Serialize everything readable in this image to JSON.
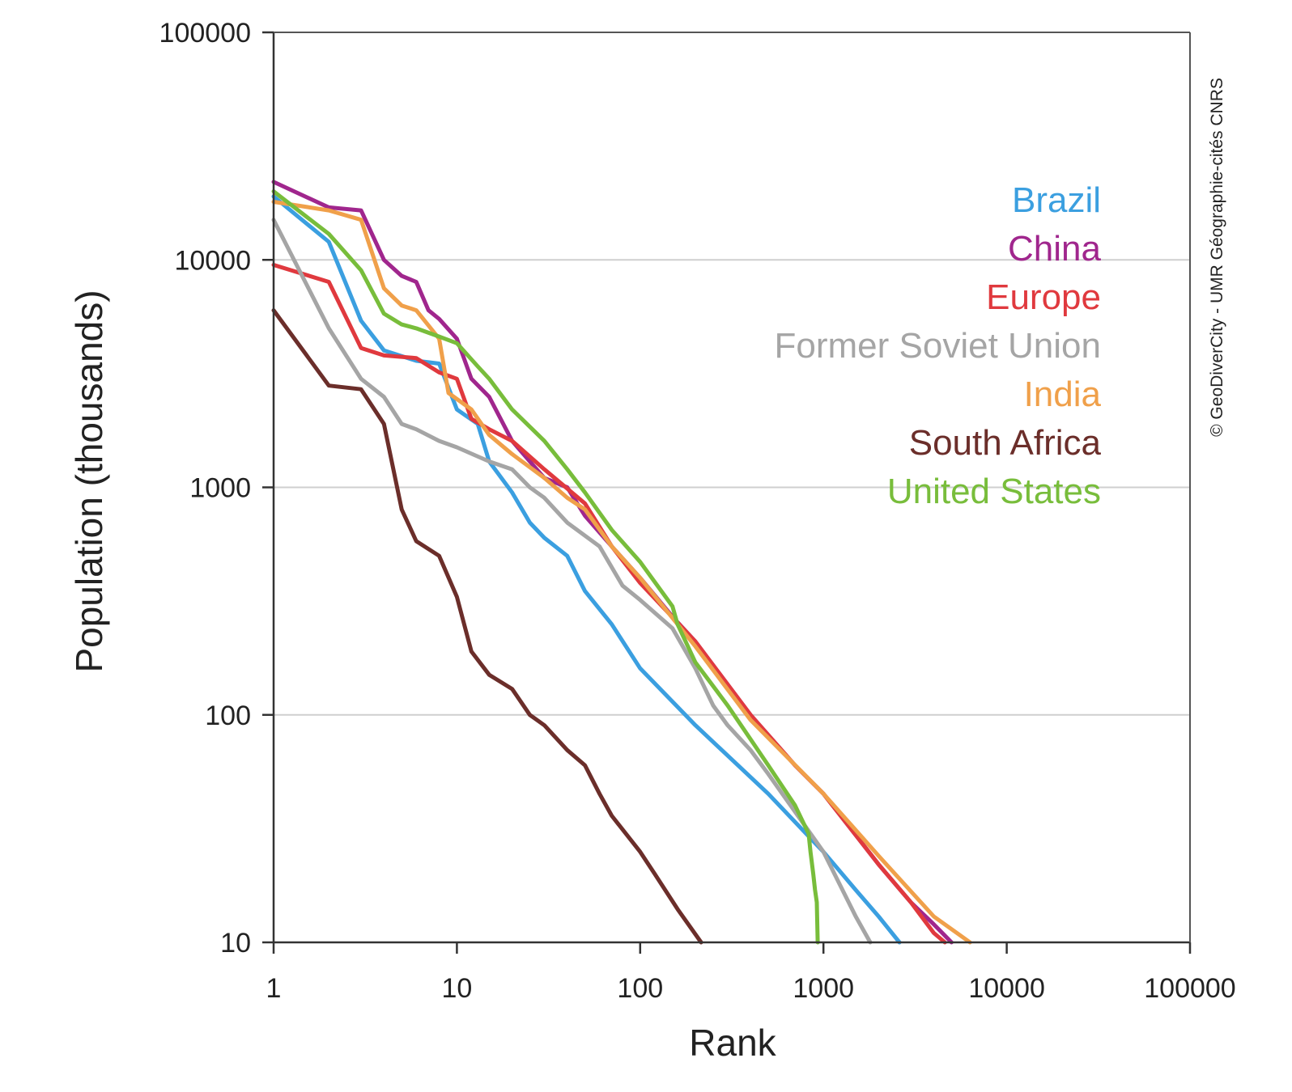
{
  "chart_data": {
    "type": "line",
    "xlabel": "Rank",
    "ylabel": "Population (thousands)",
    "x_scale": "log",
    "y_scale": "log",
    "xlim": [
      1,
      100000
    ],
    "ylim": [
      10,
      100000
    ],
    "x_ticks": [
      "1",
      "10",
      "100",
      "1000",
      "10000",
      "100000"
    ],
    "y_ticks": [
      "10",
      "100",
      "1000",
      "10000",
      "100000"
    ],
    "grid": "horizontal",
    "legend_position": "top-right",
    "credit": "© GeoDiverCity - UMR Géographie-cités CNRS",
    "series": [
      {
        "name": "Brazil",
        "color": "#3b9fe0",
        "points": [
          [
            1,
            19000
          ],
          [
            2,
            12000
          ],
          [
            3,
            5400
          ],
          [
            4,
            4000
          ],
          [
            6,
            3600
          ],
          [
            8,
            3500
          ],
          [
            10,
            2200
          ],
          [
            13,
            1900
          ],
          [
            15,
            1300
          ],
          [
            20,
            950
          ],
          [
            25,
            700
          ],
          [
            30,
            600
          ],
          [
            40,
            500
          ],
          [
            50,
            350
          ],
          [
            70,
            250
          ],
          [
            100,
            160
          ],
          [
            200,
            90
          ],
          [
            500,
            45
          ],
          [
            1000,
            25
          ],
          [
            1500,
            17
          ],
          [
            2000,
            13
          ],
          [
            2600,
            10
          ]
        ]
      },
      {
        "name": "China",
        "color": "#a0268d",
        "points": [
          [
            1,
            22000
          ],
          [
            2,
            17000
          ],
          [
            3,
            16500
          ],
          [
            4,
            10000
          ],
          [
            5,
            8500
          ],
          [
            6,
            8000
          ],
          [
            7,
            6000
          ],
          [
            8,
            5500
          ],
          [
            10,
            4500
          ],
          [
            12,
            3000
          ],
          [
            15,
            2500
          ],
          [
            20,
            1600
          ],
          [
            25,
            1300
          ],
          [
            30,
            1100
          ],
          [
            40,
            1000
          ],
          [
            50,
            750
          ],
          [
            70,
            550
          ],
          [
            100,
            400
          ],
          [
            150,
            270
          ],
          [
            200,
            210
          ],
          [
            400,
            100
          ],
          [
            700,
            60
          ],
          [
            1000,
            45
          ],
          [
            2000,
            22
          ],
          [
            3000,
            15
          ],
          [
            4000,
            12
          ],
          [
            5000,
            10
          ]
        ]
      },
      {
        "name": "Europe",
        "color": "#e0393e",
        "points": [
          [
            1,
            9500
          ],
          [
            2,
            8000
          ],
          [
            3,
            4100
          ],
          [
            4,
            3800
          ],
          [
            6,
            3700
          ],
          [
            8,
            3200
          ],
          [
            10,
            3000
          ],
          [
            12,
            2000
          ],
          [
            15,
            1800
          ],
          [
            20,
            1600
          ],
          [
            30,
            1200
          ],
          [
            50,
            850
          ],
          [
            70,
            550
          ],
          [
            100,
            380
          ],
          [
            200,
            210
          ],
          [
            400,
            100
          ],
          [
            700,
            60
          ],
          [
            1000,
            45
          ],
          [
            2000,
            22
          ],
          [
            3000,
            15
          ],
          [
            4000,
            11
          ],
          [
            4600,
            10
          ]
        ]
      },
      {
        "name": "Former Soviet Union",
        "color": "#a5a5a5",
        "points": [
          [
            1,
            15000
          ],
          [
            2,
            5000
          ],
          [
            3,
            3000
          ],
          [
            4,
            2500
          ],
          [
            5,
            1900
          ],
          [
            6,
            1800
          ],
          [
            8,
            1600
          ],
          [
            10,
            1500
          ],
          [
            15,
            1300
          ],
          [
            20,
            1200
          ],
          [
            25,
            1000
          ],
          [
            30,
            900
          ],
          [
            40,
            700
          ],
          [
            60,
            550
          ],
          [
            80,
            370
          ],
          [
            100,
            320
          ],
          [
            150,
            240
          ],
          [
            200,
            160
          ],
          [
            250,
            110
          ],
          [
            300,
            90
          ],
          [
            400,
            70
          ],
          [
            500,
            55
          ],
          [
            1000,
            25
          ],
          [
            1500,
            13
          ],
          [
            1800,
            10
          ]
        ]
      },
      {
        "name": "India",
        "color": "#f0a04a",
        "points": [
          [
            1,
            18000
          ],
          [
            2,
            16500
          ],
          [
            3,
            15000
          ],
          [
            4,
            7500
          ],
          [
            5,
            6300
          ],
          [
            6,
            6000
          ],
          [
            8,
            4500
          ],
          [
            9,
            2600
          ],
          [
            12,
            2200
          ],
          [
            15,
            1700
          ],
          [
            20,
            1400
          ],
          [
            30,
            1100
          ],
          [
            40,
            900
          ],
          [
            50,
            800
          ],
          [
            70,
            550
          ],
          [
            100,
            400
          ],
          [
            200,
            200
          ],
          [
            400,
            95
          ],
          [
            1000,
            45
          ],
          [
            2000,
            24
          ],
          [
            4000,
            13
          ],
          [
            6300,
            10
          ]
        ]
      },
      {
        "name": "South Africa",
        "color": "#6b2e2a",
        "points": [
          [
            1,
            6000
          ],
          [
            2,
            2800
          ],
          [
            3,
            2700
          ],
          [
            4,
            1900
          ],
          [
            5,
            800
          ],
          [
            6,
            580
          ],
          [
            8,
            500
          ],
          [
            10,
            330
          ],
          [
            12,
            190
          ],
          [
            15,
            150
          ],
          [
            20,
            130
          ],
          [
            25,
            100
          ],
          [
            30,
            90
          ],
          [
            40,
            70
          ],
          [
            50,
            60
          ],
          [
            60,
            45
          ],
          [
            70,
            36
          ],
          [
            100,
            25
          ],
          [
            120,
            20
          ],
          [
            160,
            14
          ],
          [
            215,
            10
          ]
        ]
      },
      {
        "name": "United States",
        "color": "#78bd3b",
        "points": [
          [
            1,
            20000
          ],
          [
            2,
            13000
          ],
          [
            3,
            9000
          ],
          [
            4,
            5800
          ],
          [
            5,
            5200
          ],
          [
            6,
            5000
          ],
          [
            8,
            4600
          ],
          [
            10,
            4300
          ],
          [
            13,
            3400
          ],
          [
            15,
            3000
          ],
          [
            20,
            2200
          ],
          [
            30,
            1600
          ],
          [
            40,
            1200
          ],
          [
            50,
            950
          ],
          [
            70,
            650
          ],
          [
            100,
            470
          ],
          [
            150,
            300
          ],
          [
            160,
            250
          ],
          [
            200,
            170
          ],
          [
            300,
            110
          ],
          [
            500,
            60
          ],
          [
            700,
            40
          ],
          [
            830,
            30
          ],
          [
            850,
            25
          ],
          [
            880,
            20
          ],
          [
            900,
            17
          ],
          [
            920,
            15
          ],
          [
            930,
            10
          ]
        ]
      }
    ]
  }
}
